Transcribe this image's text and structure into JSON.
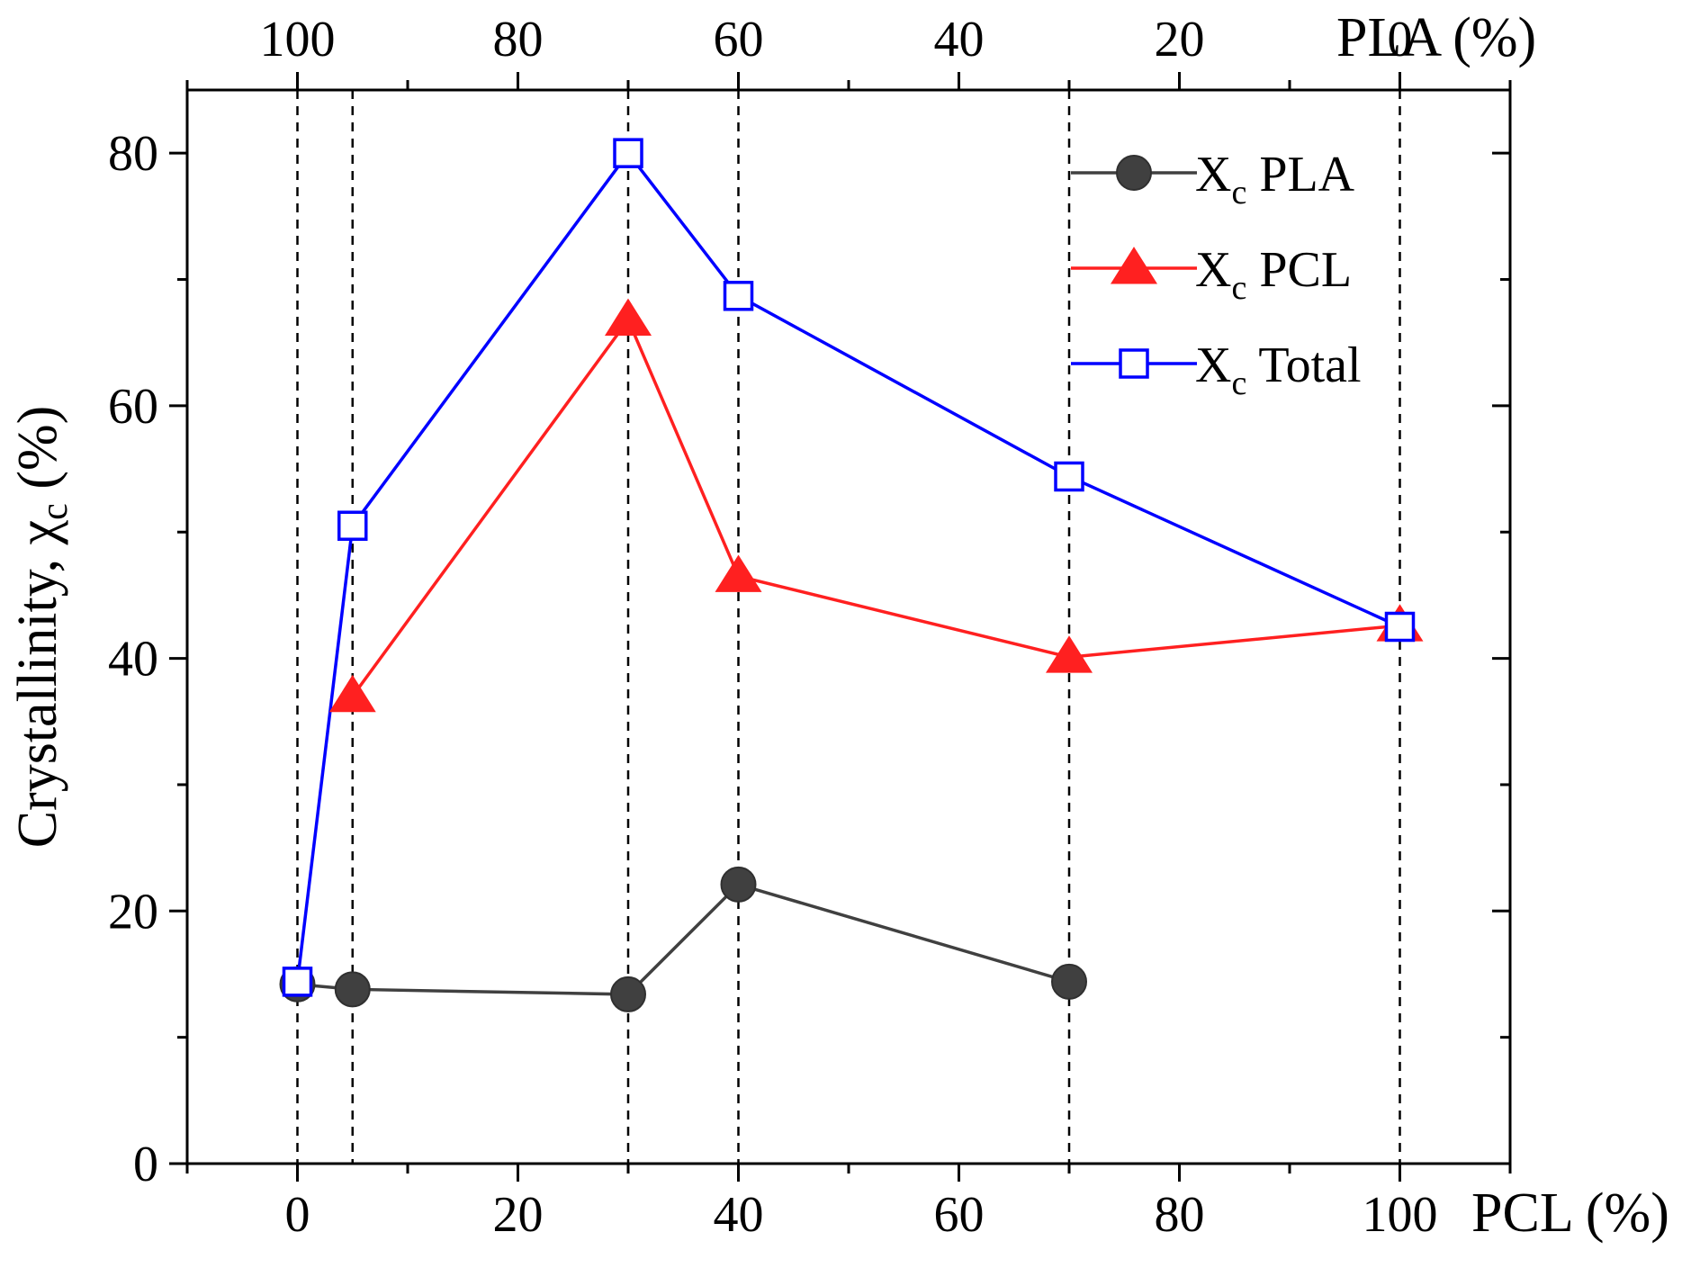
{
  "chart_data": {
    "type": "line",
    "title": "",
    "ylabel": "Crystallinity, χ",
    "ylabel_subscript": "c",
    "ylabel_suffix": " (%)",
    "xlabel": "PCL (%)",
    "x2label": "PLA (%)",
    "xlim": [
      -10,
      110
    ],
    "ylim": [
      0,
      85
    ],
    "x_ticks": [
      0,
      20,
      40,
      60,
      80,
      100
    ],
    "x_tick_labels": [
      "0",
      "20",
      "40",
      "60",
      "80",
      "100"
    ],
    "x2_tick_labels": [
      "100",
      "80",
      "60",
      "40",
      "20",
      "0"
    ],
    "y_ticks": [
      0,
      20,
      40,
      60,
      80
    ],
    "y_tick_labels": [
      "0",
      "20",
      "40",
      "60",
      "80"
    ],
    "reference_lines_x": [
      0,
      5,
      30,
      40,
      70,
      100
    ],
    "legend_position": "top-right",
    "series": [
      {
        "name": "Xc PLA",
        "legend_main": "X",
        "legend_sub": "c",
        "legend_rest": " PLA",
        "color": "#404040",
        "marker": "circle",
        "x": [
          0,
          5,
          30,
          40,
          70
        ],
        "values": [
          14.2,
          13.8,
          13.4,
          22.1,
          14.4
        ]
      },
      {
        "name": "Xc PCL",
        "legend_main": "X",
        "legend_sub": "c",
        "legend_rest": " PCL",
        "color": "#ff2020",
        "marker": "triangle",
        "x": [
          5,
          30,
          40,
          70,
          100
        ],
        "values": [
          37.0,
          66.8,
          46.5,
          40.1,
          42.6
        ]
      },
      {
        "name": "Xc Total",
        "legend_main": "X",
        "legend_sub": "c",
        "legend_rest": " Total",
        "color": "#0000ff",
        "marker": "square-open",
        "x": [
          0,
          5,
          30,
          40,
          70,
          100
        ],
        "values": [
          14.4,
          50.5,
          80.0,
          68.7,
          54.4,
          42.5
        ]
      }
    ]
  }
}
